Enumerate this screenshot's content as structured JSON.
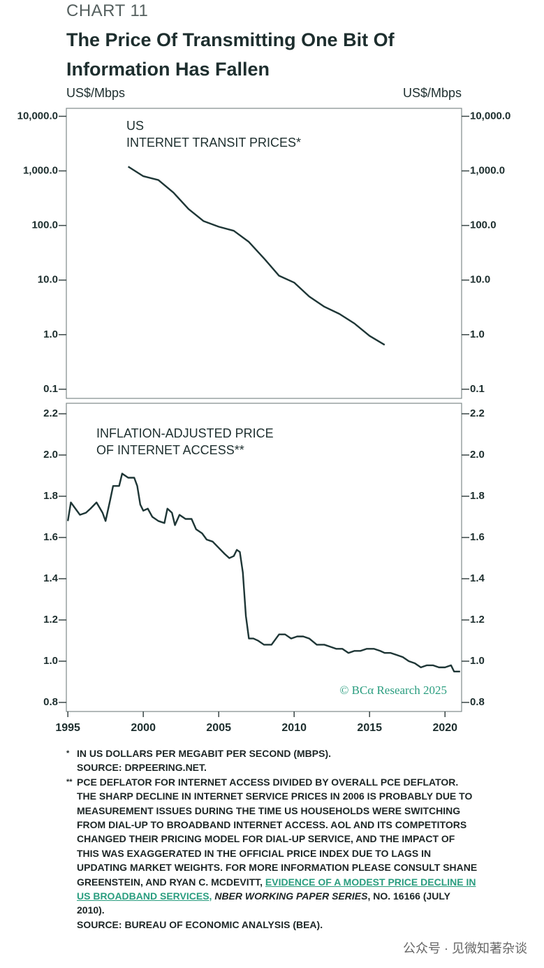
{
  "header": {
    "label": "CHART 11",
    "title": "The Price Of Transmitting One Bit Of Information Has Fallen"
  },
  "chart_data": [
    {
      "type": "line",
      "ylabel": "US$/Mbps",
      "y2label": "US$/Mbps",
      "annotation": [
        "US",
        "INTERNET TRANSIT PRICES*"
      ],
      "log_scale": true,
      "color": "#1e3636",
      "x": [
        1999,
        2000,
        2001,
        2002,
        2003,
        2004,
        2005,
        2006,
        2007,
        2008,
        2009,
        2010,
        2011,
        2012,
        2013,
        2014,
        2015,
        2016
      ],
      "values": [
        1200,
        800,
        680,
        400,
        200,
        120,
        95,
        80,
        50,
        25,
        12,
        9,
        5,
        3.25,
        2.4,
        1.6,
        0.95,
        0.65
      ],
      "xlim": [
        1994.9,
        2021.1
      ],
      "ylim": [
        0.068,
        14000
      ],
      "yticks": [
        {
          "value": 10000,
          "label": "10,000.0"
        },
        {
          "value": 1000,
          "label": "1,000.0"
        },
        {
          "value": 100,
          "label": "100.0"
        },
        {
          "value": 10,
          "label": "10.0"
        },
        {
          "value": 1,
          "label": "1.0"
        },
        0.1
      ]
    },
    {
      "type": "line",
      "annotation": [
        "INFLATION-ADJUSTED PRICE",
        "OF INTERNET ACCESS**"
      ],
      "watermark": "© BCα Research 2025",
      "color": "#1e3636",
      "x": [
        1995.0,
        1995.2,
        1995.5,
        1995.8,
        1996.2,
        1996.5,
        1996.9,
        1997.3,
        1997.5,
        1997.8,
        1998.0,
        1998.4,
        1998.6,
        1999.0,
        1999.4,
        1999.6,
        1999.8,
        2000.0,
        2000.3,
        2000.6,
        2001.0,
        2001.4,
        2001.6,
        2001.9,
        2002.1,
        2002.4,
        2002.8,
        2003.2,
        2003.5,
        2003.9,
        2004.2,
        2004.6,
        2005.0,
        2005.4,
        2005.7,
        2006.0,
        2006.2,
        2006.4,
        2006.6,
        2006.8,
        2007.0,
        2007.3,
        2007.6,
        2008.0,
        2008.5,
        2009.0,
        2009.4,
        2009.8,
        2010.2,
        2010.6,
        2011.0,
        2011.5,
        2012.0,
        2012.4,
        2012.8,
        2013.2,
        2013.6,
        2014.0,
        2014.4,
        2014.8,
        2015.3,
        2015.7,
        2016.0,
        2016.4,
        2016.8,
        2017.2,
        2017.6,
        2018.0,
        2018.4,
        2018.8,
        2019.2,
        2019.6,
        2020.0,
        2020.4,
        2020.6,
        2021.0
      ],
      "values": [
        1.68,
        1.77,
        1.74,
        1.71,
        1.72,
        1.74,
        1.77,
        1.72,
        1.68,
        1.78,
        1.85,
        1.85,
        1.91,
        1.89,
        1.89,
        1.85,
        1.76,
        1.73,
        1.74,
        1.7,
        1.68,
        1.67,
        1.74,
        1.72,
        1.66,
        1.71,
        1.69,
        1.69,
        1.64,
        1.62,
        1.59,
        1.58,
        1.55,
        1.52,
        1.5,
        1.51,
        1.54,
        1.53,
        1.43,
        1.22,
        1.11,
        1.11,
        1.1,
        1.08,
        1.08,
        1.13,
        1.13,
        1.11,
        1.12,
        1.12,
        1.11,
        1.08,
        1.08,
        1.07,
        1.06,
        1.06,
        1.04,
        1.05,
        1.05,
        1.06,
        1.06,
        1.05,
        1.04,
        1.04,
        1.03,
        1.02,
        1.0,
        0.99,
        0.97,
        0.98,
        0.98,
        0.97,
        0.97,
        0.98,
        0.95,
        0.95
      ],
      "xlim": [
        1994.9,
        2021.1
      ],
      "ylim": [
        0.756,
        2.251
      ],
      "xticks": [
        1995,
        2000,
        2005,
        2010,
        2015,
        2020
      ],
      "yticks": [
        2.2,
        {
          "value": 2.0,
          "label": "2.0"
        },
        1.8,
        1.6,
        1.4,
        1.2,
        {
          "value": 1.0,
          "label": "1.0"
        },
        0.8
      ]
    }
  ],
  "footnotes": [
    {
      "marker": "*",
      "lines": [
        "IN US DOLLARS PER MEGABIT PER SECOND (MBPS).",
        "SOURCE: DRPEERING.NET."
      ]
    },
    {
      "marker": "**",
      "text": "PCE DEFLATOR FOR INTERNET ACCESS DIVIDED BY OVERALL PCE DEFLATOR. THE SHARP DECLINE IN INTERNET SERVICE PRICES IN 2006 IS PROBABLY DUE TO MEASUREMENT ISSUES DURING THE TIME US HOUSEHOLDS WERE SWITCHING FROM DIAL-UP TO BROADBAND INTERNET ACCESS. AOL AND ITS COMPETITORS CHANGED THEIR PRICING MODEL FOR DIAL-UP SERVICE, AND THE IMPACT OF THIS WAS EXAGGERATED IN THE OFFICIAL PRICE INDEX DUE TO LAGS IN UPDATING MARKET WEIGHTS. FOR MORE INFORMATION PLEASE CONSULT SHANE GREENSTEIN, AND RYAN C. MCDEVITT,",
      "link": "EVIDENCE OF A MODEST PRICE DECLINE IN US BROADBAND SERVICES,",
      "journal": "NBER WORKING PAPER SERIES",
      "rest": ", NO. 16166 (JULY 2010).",
      "source": "SOURCE: BUREAU OF ECONOMIC ANALYSIS (BEA)."
    }
  ],
  "overlay": "公众号 · 见微知著杂谈"
}
